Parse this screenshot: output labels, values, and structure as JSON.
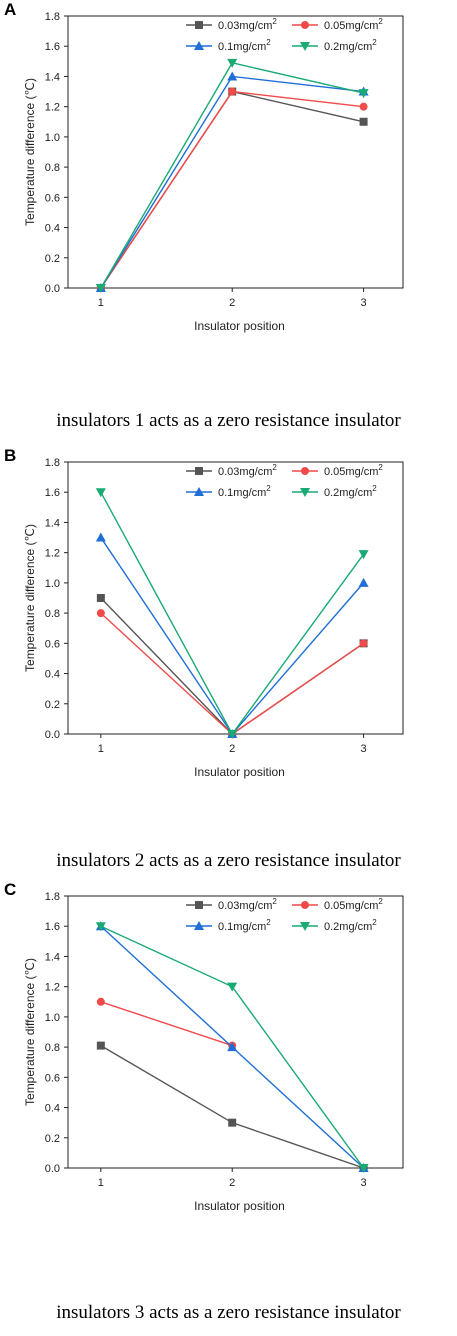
{
  "panels": [
    {
      "letter": "A",
      "caption": "insulators 1 acts as a zero resistance insulator",
      "chart_data": {
        "type": "line",
        "x": [
          1,
          2,
          3
        ],
        "xlabel": "Insulator position",
        "ylabel": "Temperature difference (℃)",
        "ylim": [
          0,
          1.8
        ],
        "yticks": [
          "0.0",
          "0.2",
          "0.4",
          "0.6",
          "0.8",
          "1.0",
          "1.2",
          "1.4",
          "1.6",
          "1.8"
        ],
        "xticks": [
          "1",
          "2",
          "3"
        ],
        "legend_position": "top-right",
        "grid": false,
        "series": [
          {
            "name": "0.03mg/cm",
            "sup": "2",
            "color": "#555555",
            "marker": "square",
            "values": [
              0.0,
              1.3,
              1.1
            ]
          },
          {
            "name": "0.05mg/cm",
            "sup": "2",
            "color": "#f04a4a",
            "marker": "circle",
            "values": [
              0.0,
              1.3,
              1.2
            ]
          },
          {
            "name": "0.1mg/cm",
            "sup": "2",
            "color": "#1f6fd6",
            "marker": "triangle-up",
            "values": [
              0.0,
              1.4,
              1.3
            ]
          },
          {
            "name": "0.2mg/cm",
            "sup": "2",
            "color": "#1aaa74",
            "marker": "triangle-down",
            "values": [
              0.0,
              1.49,
              1.29
            ]
          }
        ]
      }
    },
    {
      "letter": "B",
      "caption": "insulators 2 acts as a zero resistance insulator",
      "chart_data": {
        "type": "line",
        "x": [
          1,
          2,
          3
        ],
        "xlabel": "Insulator position",
        "ylabel": "Temperature difference (℃)",
        "ylim": [
          0,
          1.8
        ],
        "yticks": [
          "0.0",
          "0.2",
          "0.4",
          "0.6",
          "0.8",
          "1.0",
          "1.2",
          "1.4",
          "1.6",
          "1.8"
        ],
        "xticks": [
          "1",
          "2",
          "3"
        ],
        "legend_position": "top-right",
        "grid": false,
        "series": [
          {
            "name": "0.03mg/cm",
            "sup": "2",
            "color": "#555555",
            "marker": "square",
            "values": [
              0.9,
              0.0,
              0.6
            ]
          },
          {
            "name": "0.05mg/cm",
            "sup": "2",
            "color": "#f04a4a",
            "marker": "circle",
            "values": [
              0.8,
              0.0,
              0.6
            ]
          },
          {
            "name": "0.1mg/cm",
            "sup": "2",
            "color": "#1f6fd6",
            "marker": "triangle-up",
            "values": [
              1.3,
              0.0,
              1.0
            ]
          },
          {
            "name": "0.2mg/cm",
            "sup": "2",
            "color": "#1aaa74",
            "marker": "triangle-down",
            "values": [
              1.6,
              0.0,
              1.19
            ]
          }
        ]
      }
    },
    {
      "letter": "C",
      "caption": "insulators 3 acts as a zero resistance insulator",
      "chart_data": {
        "type": "line",
        "x": [
          1,
          2,
          3
        ],
        "xlabel": "Insulator position",
        "ylabel": "Temperature difference (℃)",
        "ylim": [
          0,
          1.8
        ],
        "yticks": [
          "0.0",
          "0.2",
          "0.4",
          "0.6",
          "0.8",
          "1.0",
          "1.2",
          "1.4",
          "1.6",
          "1.8"
        ],
        "xticks": [
          "1",
          "2",
          "3"
        ],
        "legend_position": "top-right",
        "grid": false,
        "series": [
          {
            "name": "0.03mg/cm",
            "sup": "2",
            "color": "#555555",
            "marker": "square",
            "values": [
              0.81,
              0.3,
              0.0
            ]
          },
          {
            "name": "0.05mg/cm",
            "sup": "2",
            "color": "#f04a4a",
            "marker": "circle",
            "values": [
              1.1,
              0.81,
              null
            ]
          },
          {
            "name": "0.1mg/cm",
            "sup": "2",
            "color": "#1f6fd6",
            "marker": "triangle-up",
            "values": [
              1.6,
              0.8,
              0.0
            ]
          },
          {
            "name": "0.2mg/cm",
            "sup": "2",
            "color": "#1aaa74",
            "marker": "triangle-down",
            "values": [
              1.6,
              1.2,
              0.0
            ]
          }
        ]
      }
    }
  ]
}
